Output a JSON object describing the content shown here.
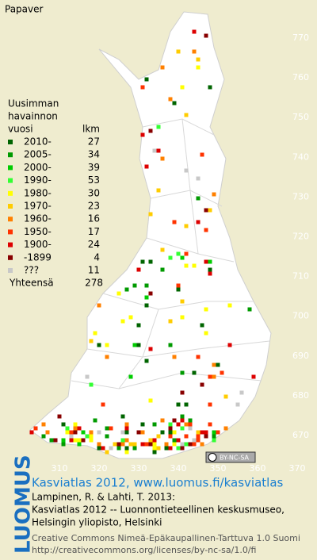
{
  "title": "Papaver",
  "legend": {
    "heading": [
      "Uusimman",
      "havainnon",
      "vuosi"
    ],
    "count_heading": "lkm",
    "rows": [
      {
        "label": "2010-",
        "count": 27,
        "color": "#006400"
      },
      {
        "label": "2005-",
        "count": 34,
        "color": "#009a00"
      },
      {
        "label": "2000-",
        "count": 39,
        "color": "#00cc00"
      },
      {
        "label": "1990-",
        "count": 53,
        "color": "#33ff33"
      },
      {
        "label": "1980-",
        "count": 30,
        "color": "#ffff00"
      },
      {
        "label": "1970-",
        "count": 23,
        "color": "#ffcc00"
      },
      {
        "label": "1960-",
        "count": 16,
        "color": "#ff8000"
      },
      {
        "label": "1950-",
        "count": 17,
        "color": "#ff3300"
      },
      {
        "label": "1900-",
        "count": 24,
        "color": "#dd0000"
      },
      {
        "label": "-1899",
        "count": 4,
        "color": "#880000"
      },
      {
        "label": "???",
        "count": 11,
        "color": "#c8c8c8"
      }
    ],
    "total": {
      "label": "Yhteensä",
      "count": 278
    }
  },
  "grid": {
    "y_labels": [
      770,
      760,
      750,
      740,
      730,
      720,
      710,
      700,
      690,
      680,
      670
    ],
    "x_labels": [
      310,
      320,
      330,
      340,
      350,
      360,
      370
    ]
  },
  "license_badge": "BY-NC-SA",
  "footer": {
    "logo": "LUOMUS",
    "headline": "Kasviatlas 2012, www.luomus.fi/kasviatlas",
    "citation": [
      "Lampinen, R. & Lahti, T. 2013:",
      "Kasviatlas 2012 -- Luonnontieteellinen keskusmuseo,",
      "Helsingin yliopisto, Helsinki"
    ],
    "license": [
      "Creative Commons Nimeä-Epäkaupallinen-Tarttuva 1.0 Suomi",
      "http://creativecommons.org/licenses/by-nc-sa/1.0/fi"
    ]
  }
}
